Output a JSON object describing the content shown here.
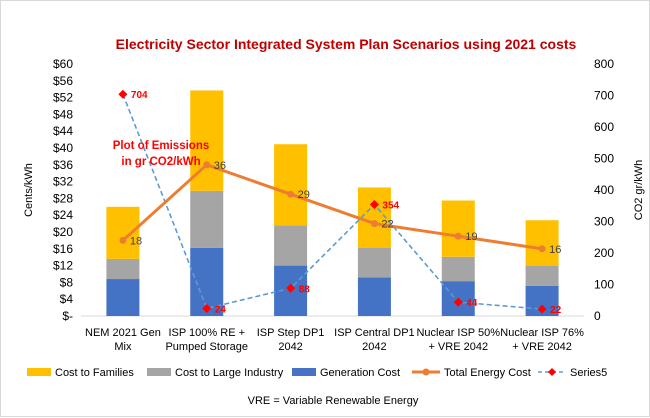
{
  "chart_data": {
    "type": "bar",
    "title": "Electricity Sector Integrated System Plan Scenarios  using 2021 costs",
    "categories": [
      [
        "NEM 2021 Gen",
        "Mix"
      ],
      [
        "ISP 100% RE +",
        "Pumped Storage"
      ],
      [
        "ISP Step DP1",
        "2042"
      ],
      [
        "ISP Central DP1",
        "2042"
      ],
      [
        "Nuclear ISP 50%",
        "+ VRE 2042"
      ],
      [
        "Nuclear ISP 76%",
        "+ VRE 2042"
      ]
    ],
    "stacked_series": [
      {
        "name": "Generation Cost",
        "color": "#4472c4",
        "values": [
          8.8,
          16.2,
          12.0,
          9.2,
          8.3,
          7.2
        ]
      },
      {
        "name": "Cost to Large Industry",
        "color": "#a5a5a5",
        "values": [
          4.8,
          13.6,
          9.6,
          7.0,
          5.8,
          4.8
        ]
      },
      {
        "name": "Cost to Families",
        "color": "#ffc000",
        "values": [
          12.4,
          23.9,
          19.3,
          14.4,
          13.4,
          10.8
        ]
      }
    ],
    "line_series": {
      "name": "Total Energy Cost",
      "color": "#ed7d31",
      "values": [
        18,
        36,
        29,
        22,
        19,
        16
      ],
      "labels": [
        "18",
        "36",
        "29",
        "22",
        "19",
        "16"
      ]
    },
    "emissions_series": {
      "name": "Series5",
      "color": "#ff0000",
      "line_color": "#5b9bd5",
      "axis": "secondary",
      "values": [
        704,
        24,
        88,
        354,
        44,
        22
      ],
      "labels": [
        "704",
        "24",
        "88",
        "354",
        "44",
        "22"
      ]
    },
    "y_axis": {
      "label": "Cents/kWh",
      "min": 0,
      "max": 60,
      "step": 4,
      "ticks": [
        "$-",
        "$4",
        "$8",
        "$12",
        "$16",
        "$20",
        "$24",
        "$28",
        "$32",
        "$36",
        "$40",
        "$44",
        "$48",
        "$52",
        "$56",
        "$60"
      ]
    },
    "y2_axis": {
      "label": "CO2 gr/kWh",
      "min": 0,
      "max": 800,
      "step": 100,
      "ticks": [
        "0",
        "100",
        "200",
        "300",
        "400",
        "500",
        "600",
        "700",
        "800"
      ]
    },
    "annotation": [
      "Plot of Emissions",
      "in gr CO2/kWh"
    ],
    "legend": {
      "placement": "bottom",
      "items": [
        {
          "label": "Cost to Families",
          "color": "#ffc000",
          "kind": "box"
        },
        {
          "label": "Cost to Large Industry",
          "color": "#a5a5a5",
          "kind": "box"
        },
        {
          "label": "Generation Cost",
          "color": "#4472c4",
          "kind": "box"
        },
        {
          "label": "Total Energy Cost",
          "color": "#ed7d31",
          "kind": "line-marker"
        },
        {
          "label": "Series5",
          "color": "#ff0000",
          "line_color": "#5b9bd5",
          "kind": "dash-diamond"
        }
      ]
    },
    "footnote": "VRE = Variable Renewable Energy",
    "grid": false
  }
}
